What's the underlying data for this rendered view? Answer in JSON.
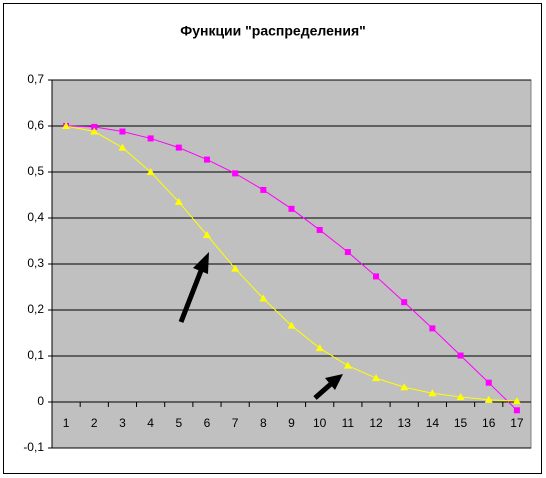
{
  "chart_data": {
    "type": "line",
    "title": "Функции \"распределения\"",
    "categories": [
      "1",
      "2",
      "3",
      "4",
      "5",
      "6",
      "7",
      "8",
      "9",
      "10",
      "11",
      "12",
      "13",
      "14",
      "15",
      "16",
      "17"
    ],
    "series": [
      {
        "color": "#ff00ff",
        "marker": "square",
        "values": [
          0.6,
          0.598,
          0.588,
          0.573,
          0.553,
          0.527,
          0.497,
          0.461,
          0.42,
          0.374,
          0.326,
          0.273,
          0.217,
          0.16,
          0.101,
          0.042,
          -0.018
        ]
      },
      {
        "color": "#ffff00",
        "marker": "triangle",
        "values": [
          0.6,
          0.588,
          0.553,
          0.5,
          0.435,
          0.363,
          0.29,
          0.225,
          0.166,
          0.117,
          0.079,
          0.052,
          0.032,
          0.019,
          0.011,
          0.005,
          0.002
        ]
      }
    ],
    "ylim": [
      -0.1,
      0.7
    ],
    "yticks": [
      {
        "value": -0.1,
        "label": "-0,1"
      },
      0,
      {
        "value": 0.1,
        "label": "0,1"
      },
      {
        "value": 0.2,
        "label": "0,2"
      },
      {
        "value": 0.3,
        "label": "0,3"
      },
      {
        "value": 0.4,
        "label": "0,4"
      },
      {
        "value": 0.5,
        "label": "0,5"
      },
      {
        "value": 0.6,
        "label": "0,6"
      },
      {
        "value": 0.7,
        "label": "0,7"
      }
    ],
    "grid": true
  }
}
